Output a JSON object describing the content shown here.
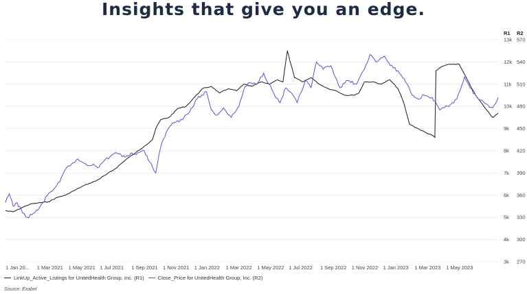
{
  "title": "Insights that give you an edge.",
  "source": "Source: Exabel",
  "chart_data": {
    "type": "line",
    "x_ticks": [
      "1 Jan 20...",
      "1 Mar 2021",
      "1 May 2021",
      "1 Jul 2021",
      "1 Sep 2021",
      "1 Nov 2021",
      "1 Jan 2022",
      "1 Mar 2022",
      "1 May 2022",
      "1 Jul 2022",
      "1 Sep 2022",
      "1 Nov 2022",
      "1 Jan 2023",
      "1 Mar 2023",
      "1 May 2023"
    ],
    "x_range": [
      "2021-01-01",
      "2023-06-15"
    ],
    "axis_r1": {
      "label": "R1",
      "ticks": [
        "3k",
        "4k",
        "5k",
        "6k",
        "7k",
        "8k",
        "9k",
        "10k",
        "11k",
        "12k",
        "13k"
      ],
      "range": [
        3000,
        13000
      ]
    },
    "axis_r2": {
      "label": "R2",
      "ticks": [
        "270",
        "300",
        "330",
        "360",
        "390",
        "420",
        "450",
        "480",
        "510",
        "540",
        "570"
      ],
      "range": [
        270,
        570
      ]
    },
    "grid": true,
    "legend_position": "bottom-left",
    "series": [
      {
        "name": "LinkUp_Active_Listings for UnitedHealth Group, Inc. (R1)",
        "axis": "R1",
        "color": "#1a1a1a",
        "points": [
          [
            "2021-01-01",
            5300
          ],
          [
            "2021-01-15",
            5250
          ],
          [
            "2021-02-01",
            5450
          ],
          [
            "2021-02-15",
            5600
          ],
          [
            "2021-03-01",
            5650
          ],
          [
            "2021-03-20",
            5700
          ],
          [
            "2021-04-05",
            5900
          ],
          [
            "2021-04-20",
            6000
          ],
          [
            "2021-05-05",
            6200
          ],
          [
            "2021-05-25",
            6450
          ],
          [
            "2021-06-15",
            6650
          ],
          [
            "2021-07-01",
            6900
          ],
          [
            "2021-07-20",
            7200
          ],
          [
            "2021-08-10",
            7650
          ],
          [
            "2021-08-25",
            7900
          ],
          [
            "2021-09-10",
            8200
          ],
          [
            "2021-09-25",
            8500
          ],
          [
            "2021-10-01",
            9000
          ],
          [
            "2021-10-10",
            9400
          ],
          [
            "2021-10-25",
            9500
          ],
          [
            "2021-11-10",
            9900
          ],
          [
            "2021-11-25",
            10000
          ],
          [
            "2021-12-10",
            10400
          ],
          [
            "2021-12-25",
            10800
          ],
          [
            "2022-01-10",
            10900
          ],
          [
            "2022-01-25",
            10600
          ],
          [
            "2022-02-10",
            10800
          ],
          [
            "2022-02-25",
            10700
          ],
          [
            "2022-03-10",
            11000
          ],
          [
            "2022-03-25",
            10900
          ],
          [
            "2022-04-10",
            11100
          ],
          [
            "2022-04-25",
            11000
          ],
          [
            "2022-05-10",
            11200
          ],
          [
            "2022-05-20",
            11100
          ],
          [
            "2022-05-28",
            12500
          ],
          [
            "2022-06-10",
            11300
          ],
          [
            "2022-06-25",
            11100
          ],
          [
            "2022-07-10",
            11300
          ],
          [
            "2022-07-25",
            11000
          ],
          [
            "2022-08-10",
            10800
          ],
          [
            "2022-08-25",
            10700
          ],
          [
            "2022-09-10",
            10500
          ],
          [
            "2022-09-25",
            10500
          ],
          [
            "2022-10-05",
            10600
          ],
          [
            "2022-10-15",
            11100
          ],
          [
            "2022-10-30",
            11100
          ],
          [
            "2022-11-15",
            11000
          ],
          [
            "2022-11-30",
            11200
          ],
          [
            "2022-12-15",
            10800
          ],
          [
            "2022-12-25",
            10200
          ],
          [
            "2023-01-05",
            9200
          ],
          [
            "2023-01-20",
            9000
          ],
          [
            "2023-02-05",
            8800
          ],
          [
            "2023-02-15",
            8700
          ],
          [
            "2023-02-20",
            8600
          ],
          [
            "2023-02-22",
            11600
          ],
          [
            "2023-03-05",
            11800
          ],
          [
            "2023-03-20",
            11900
          ],
          [
            "2023-04-05",
            11900
          ],
          [
            "2023-04-20",
            11200
          ],
          [
            "2023-05-05",
            10500
          ],
          [
            "2023-05-20",
            10000
          ],
          [
            "2023-06-05",
            9500
          ],
          [
            "2023-06-15",
            9700
          ]
        ]
      },
      {
        "name": "Close_Price for UnitedHealth Group, Inc. (R2)",
        "axis": "R2",
        "color": "#5b4fd9",
        "points": [
          [
            "2021-01-01",
            350
          ],
          [
            "2021-01-08",
            362
          ],
          [
            "2021-01-15",
            345
          ],
          [
            "2021-01-22",
            350
          ],
          [
            "2021-02-01",
            336
          ],
          [
            "2021-02-10",
            330
          ],
          [
            "2021-02-20",
            335
          ],
          [
            "2021-03-01",
            340
          ],
          [
            "2021-03-10",
            350
          ],
          [
            "2021-03-20",
            362
          ],
          [
            "2021-04-01",
            370
          ],
          [
            "2021-04-10",
            378
          ],
          [
            "2021-04-20",
            395
          ],
          [
            "2021-05-01",
            402
          ],
          [
            "2021-05-10",
            408
          ],
          [
            "2021-05-20",
            405
          ],
          [
            "2021-06-01",
            400
          ],
          [
            "2021-06-10",
            402
          ],
          [
            "2021-06-20",
            398
          ],
          [
            "2021-07-01",
            408
          ],
          [
            "2021-07-10",
            412
          ],
          [
            "2021-07-20",
            418
          ],
          [
            "2021-08-01",
            412
          ],
          [
            "2021-08-15",
            415
          ],
          [
            "2021-09-01",
            418
          ],
          [
            "2021-09-10",
            420
          ],
          [
            "2021-09-20",
            405
          ],
          [
            "2021-10-01",
            390
          ],
          [
            "2021-10-10",
            425
          ],
          [
            "2021-10-20",
            445
          ],
          [
            "2021-11-01",
            458
          ],
          [
            "2021-11-15",
            462
          ],
          [
            "2021-12-01",
            472
          ],
          [
            "2021-12-15",
            490
          ],
          [
            "2022-01-01",
            500
          ],
          [
            "2022-01-10",
            475
          ],
          [
            "2022-01-20",
            468
          ],
          [
            "2022-02-01",
            478
          ],
          [
            "2022-02-15",
            465
          ],
          [
            "2022-03-01",
            480
          ],
          [
            "2022-03-10",
            503
          ],
          [
            "2022-03-20",
            512
          ],
          [
            "2022-04-01",
            510
          ],
          [
            "2022-04-15",
            525
          ],
          [
            "2022-04-25",
            510
          ],
          [
            "2022-05-05",
            495
          ],
          [
            "2022-05-15",
            485
          ],
          [
            "2022-05-25",
            505
          ],
          [
            "2022-06-01",
            500
          ],
          [
            "2022-06-15",
            485
          ],
          [
            "2022-06-30",
            515
          ],
          [
            "2022-07-10",
            505
          ],
          [
            "2022-07-20",
            540
          ],
          [
            "2022-08-01",
            530
          ],
          [
            "2022-08-15",
            535
          ],
          [
            "2022-09-01",
            505
          ],
          [
            "2022-09-15",
            515
          ],
          [
            "2022-10-01",
            510
          ],
          [
            "2022-10-15",
            530
          ],
          [
            "2022-10-25",
            550
          ],
          [
            "2022-11-05",
            540
          ],
          [
            "2022-11-20",
            548
          ],
          [
            "2022-12-01",
            535
          ],
          [
            "2022-12-15",
            528
          ],
          [
            "2023-01-01",
            510
          ],
          [
            "2023-01-10",
            495
          ],
          [
            "2023-01-20",
            490
          ],
          [
            "2023-02-01",
            495
          ],
          [
            "2023-02-15",
            492
          ],
          [
            "2023-03-01",
            475
          ],
          [
            "2023-03-15",
            480
          ],
          [
            "2023-04-01",
            490
          ],
          [
            "2023-04-15",
            520
          ],
          [
            "2023-04-25",
            505
          ],
          [
            "2023-05-10",
            490
          ],
          [
            "2023-05-25",
            483
          ],
          [
            "2023-06-05",
            478
          ],
          [
            "2023-06-15",
            492
          ]
        ]
      }
    ]
  }
}
